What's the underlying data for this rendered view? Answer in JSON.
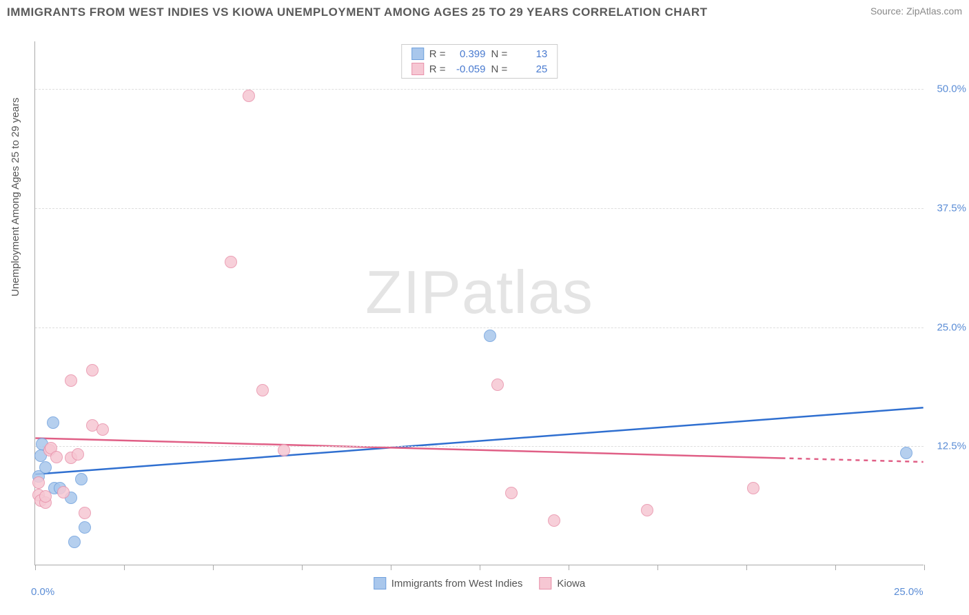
{
  "header": {
    "title": "IMMIGRANTS FROM WEST INDIES VS KIOWA UNEMPLOYMENT AMONG AGES 25 TO 29 YEARS CORRELATION CHART",
    "source": "Source: ZipAtlas.com"
  },
  "watermark": {
    "zip": "ZIP",
    "atlas": "atlas"
  },
  "chart": {
    "type": "scatter",
    "ylabel": "Unemployment Among Ages 25 to 29 years",
    "background_color": "#ffffff",
    "grid_color": "#dddddd",
    "axis_color": "#aaaaaa",
    "xlim": [
      0,
      25
    ],
    "ylim": [
      0,
      55
    ],
    "xticks": [
      0,
      2.5,
      5,
      7.5,
      10,
      12.5,
      15,
      17.5,
      20,
      22.5,
      25
    ],
    "yticks": [
      12.5,
      25,
      37.5,
      50
    ],
    "xtick_labels": {
      "0": "0.0%",
      "25": "25.0%"
    },
    "ytick_labels": {
      "12.5": "12.5%",
      "25": "25.0%",
      "37.5": "37.5%",
      "50": "50.0%"
    },
    "marker_radius": 9,
    "marker_fill_opacity": 0.25,
    "marker_stroke_width": 1.5,
    "trend_line_width": 2.5,
    "series": [
      {
        "id": "immigrants",
        "label": "Immigrants from West Indies",
        "color_fill": "#a9c7ec",
        "color_stroke": "#6fa0dd",
        "trend_color": "#2f6fd0",
        "R": "0.399",
        "N": "13",
        "points": [
          [
            0.1,
            9.3
          ],
          [
            0.15,
            11.4
          ],
          [
            0.5,
            14.9
          ],
          [
            0.55,
            8.0
          ],
          [
            0.2,
            12.7
          ],
          [
            0.3,
            10.2
          ],
          [
            0.7,
            8.0
          ],
          [
            1.0,
            7.0
          ],
          [
            1.3,
            9.0
          ],
          [
            1.4,
            3.9
          ],
          [
            1.1,
            2.4
          ],
          [
            12.8,
            24.0
          ],
          [
            24.5,
            11.7
          ]
        ],
        "trend": {
          "x1": 0,
          "y1": 9.5,
          "x2": 25,
          "y2": 16.5
        }
      },
      {
        "id": "kiowa",
        "label": "Kiowa",
        "color_fill": "#f6c7d3",
        "color_stroke": "#e891aa",
        "trend_color": "#e05f86",
        "R": "-0.059",
        "N": "25",
        "points": [
          [
            0.1,
            7.3
          ],
          [
            0.1,
            8.6
          ],
          [
            0.15,
            6.7
          ],
          [
            0.3,
            6.5
          ],
          [
            0.3,
            7.2
          ],
          [
            0.4,
            12.0
          ],
          [
            0.45,
            12.2
          ],
          [
            0.6,
            11.3
          ],
          [
            0.8,
            7.6
          ],
          [
            1.0,
            11.2
          ],
          [
            1.2,
            11.6
          ],
          [
            1.4,
            5.4
          ],
          [
            1.6,
            20.4
          ],
          [
            1.0,
            19.3
          ],
          [
            1.6,
            14.6
          ],
          [
            1.9,
            14.2
          ],
          [
            6.0,
            49.2
          ],
          [
            5.5,
            31.8
          ],
          [
            6.4,
            18.3
          ],
          [
            7.0,
            12.0
          ],
          [
            13.0,
            18.9
          ],
          [
            13.4,
            7.5
          ],
          [
            14.6,
            4.6
          ],
          [
            17.2,
            5.7
          ],
          [
            20.2,
            8.0
          ]
        ],
        "trend": {
          "x1": 0,
          "y1": 13.3,
          "x2": 25,
          "y2": 10.8,
          "dash_from_x": 21
        }
      }
    ]
  }
}
